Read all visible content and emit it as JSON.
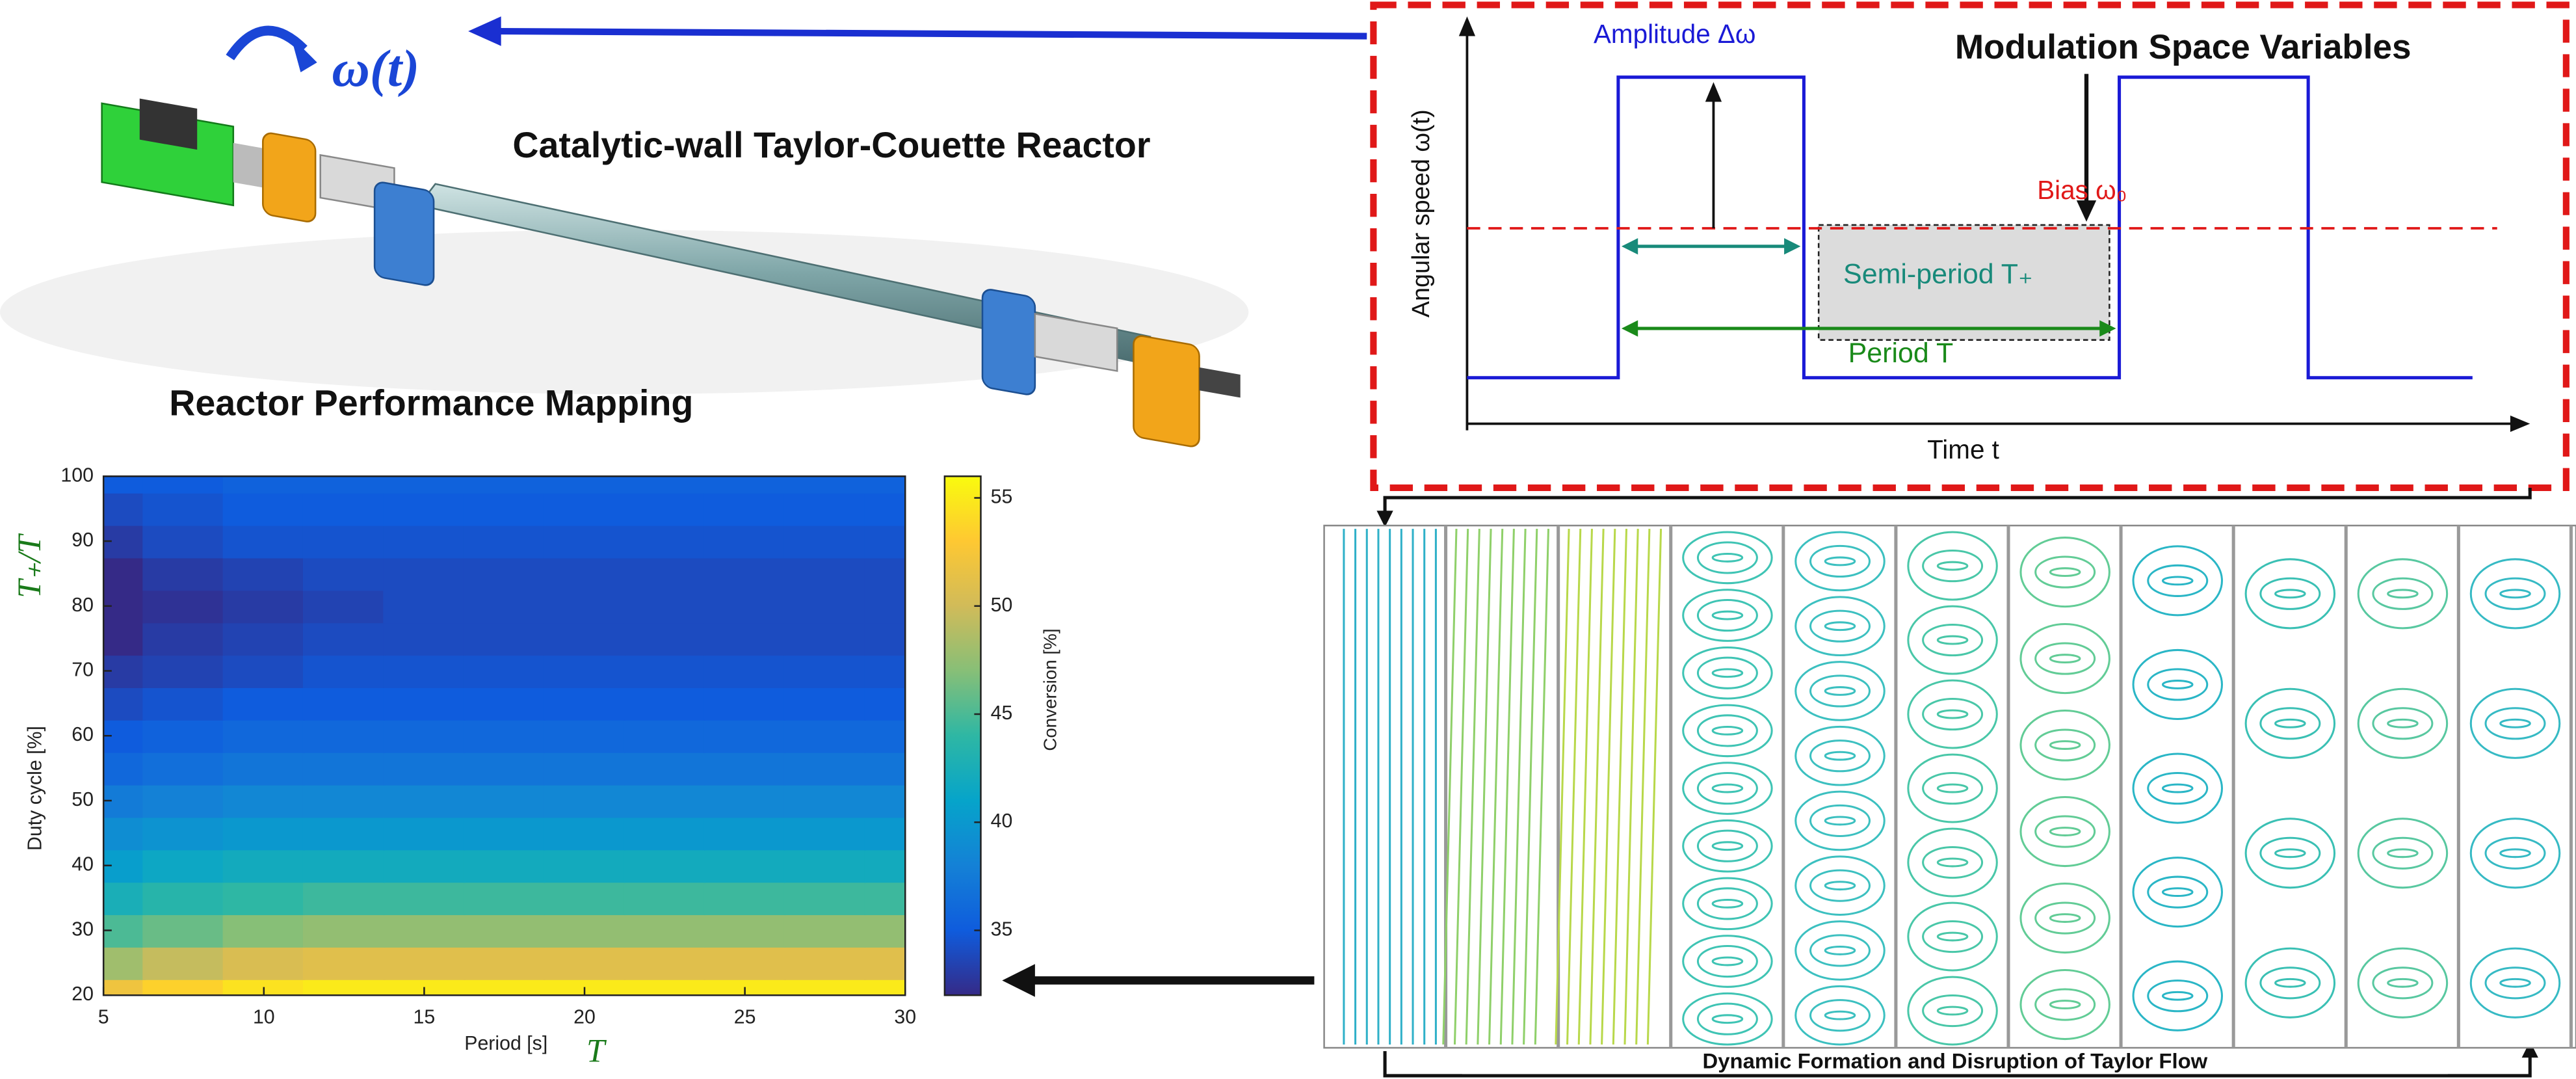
{
  "reactor": {
    "title": "Catalytic-wall Taylor-Couette Reactor",
    "speed_symbol": "ω(t)"
  },
  "modulation": {
    "title": "Modulation Space Variables",
    "amplitude": "Amplitude Δω",
    "bias": "Bias ω₀",
    "semi_period": "Semi-period T₊",
    "period": "Period T",
    "y_label": "Angular speed ω(t)",
    "x_label": "Time t"
  },
  "flow": {
    "caption": "Dynamic Formation and Disruption of Taylor Flow"
  },
  "mapping_title": "Reactor Performance Mapping",
  "chart_data": {
    "type": "heatmap",
    "x_label": "Period [s]",
    "x_symbol": "T",
    "y_label": "Duty cycle [%]",
    "y_symbol": "T₊/T",
    "x": [
      5,
      7.5,
      10,
      12.5,
      15,
      17.5,
      20,
      22.5,
      25,
      27.5,
      30
    ],
    "y": [
      20,
      25,
      30,
      35,
      40,
      45,
      50,
      55,
      60,
      65,
      70,
      75,
      80,
      85,
      90,
      95,
      100
    ],
    "z": [
      [
        52,
        53.5,
        54.5,
        55,
        55,
        55,
        55,
        55,
        55,
        55,
        55
      ],
      [
        48,
        49.5,
        50.5,
        51,
        51,
        51,
        51,
        51,
        51,
        51,
        51
      ],
      [
        45,
        46,
        47,
        47.5,
        47.5,
        47.5,
        47.5,
        47.5,
        47.5,
        47.5,
        47.5
      ],
      [
        42.5,
        43.5,
        44,
        44.5,
        44.5,
        44.5,
        44.5,
        44.5,
        44.5,
        44.5,
        44.5
      ],
      [
        40.5,
        41.5,
        42,
        42,
        42,
        42,
        42,
        42,
        42,
        42,
        42
      ],
      [
        39,
        39.5,
        40,
        40,
        40,
        40,
        40,
        40,
        40,
        40,
        40
      ],
      [
        37.5,
        38,
        38.5,
        38.5,
        38.5,
        38.5,
        38.5,
        38.5,
        38.5,
        38.5,
        38.5
      ],
      [
        36,
        36.5,
        37,
        37,
        37,
        37,
        37,
        37,
        37,
        37,
        37
      ],
      [
        35,
        35.5,
        36,
        36,
        36,
        36,
        36,
        36,
        36,
        36,
        36
      ],
      [
        34,
        34.5,
        35,
        35,
        35,
        35,
        35,
        35,
        35,
        35,
        35
      ],
      [
        33,
        33.5,
        34,
        34.5,
        34.5,
        34.5,
        34.5,
        34.5,
        34.5,
        34.5,
        34.5
      ],
      [
        32,
        33,
        33.5,
        34,
        34,
        34,
        34,
        34,
        34,
        34,
        34
      ],
      [
        31.5,
        32.5,
        33,
        33.5,
        34,
        34,
        34,
        34,
        34,
        34,
        34
      ],
      [
        32,
        33,
        33.5,
        34,
        34,
        34,
        34,
        34,
        34,
        34,
        34
      ],
      [
        33,
        34,
        34.5,
        34.5,
        34.5,
        34.5,
        34.5,
        34.5,
        34.5,
        34.5,
        34.5
      ],
      [
        34,
        34.5,
        35,
        35,
        35,
        35,
        35,
        35,
        35,
        35,
        35
      ],
      [
        35,
        35,
        35.5,
        35.5,
        35.5,
        35.5,
        35.5,
        35.5,
        35.5,
        35.5,
        35.5
      ]
    ],
    "xlim": [
      5,
      30
    ],
    "xticks": [
      5,
      10,
      15,
      20,
      25,
      30
    ],
    "ylim": [
      20,
      100
    ],
    "yticks": [
      20,
      30,
      40,
      50,
      60,
      70,
      80,
      90,
      100
    ],
    "colormap": [
      "#352a87",
      "#0f5cdd",
      "#1481d6",
      "#06a4ca",
      "#2eb7a4",
      "#87bf77",
      "#d1bb59",
      "#fec832",
      "#f9fb0e"
    ],
    "colorbar": {
      "label": "Conversion [%]",
      "lim": [
        32,
        56
      ],
      "ticks": [
        35,
        40,
        45,
        50,
        55
      ]
    }
  }
}
